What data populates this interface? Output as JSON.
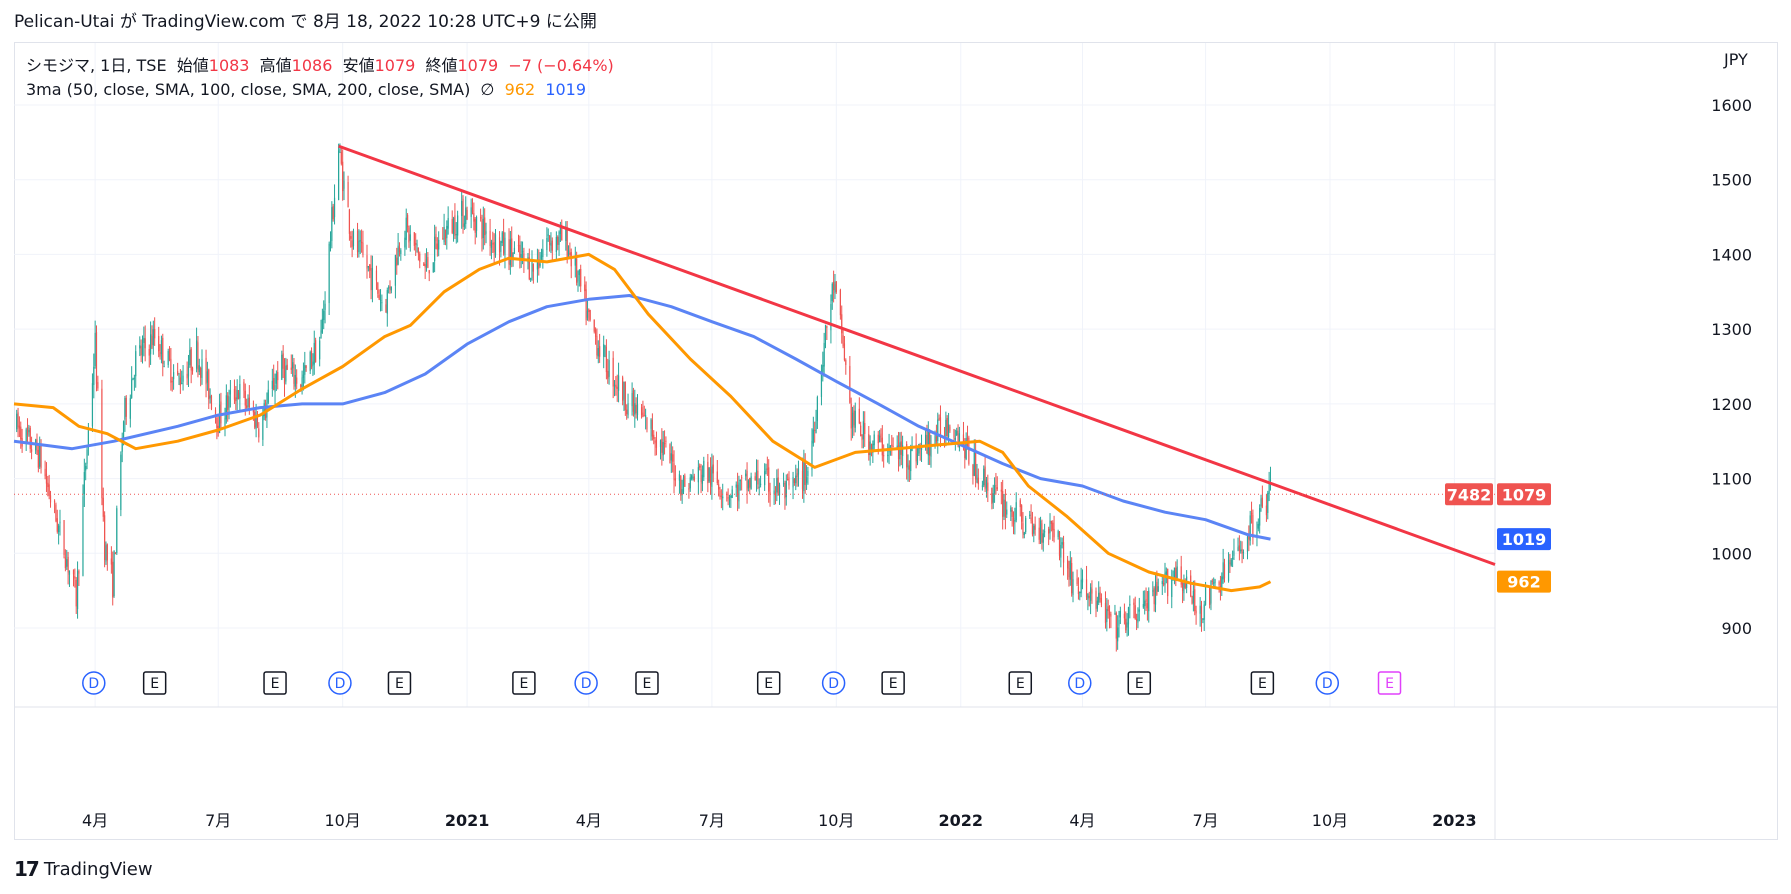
{
  "header": {
    "publish_text": "Pelican-Utai が TradingView.com で 8月 18, 2022 10:28 UTC+9 に公開"
  },
  "legend": {
    "symbol": "シモジマ, 1日, TSE",
    "open_label": "始値",
    "open": "1083",
    "high_label": "高値",
    "high": "1086",
    "low_label": "安値",
    "low": "1079",
    "close_label": "終値",
    "close": "1079",
    "change": "−7 (−0.64%)",
    "indicator": "3ma (50, close, SMA, 100, close, SMA, 200, close, SMA)",
    "indicator_empty_symbol": "∅",
    "ma50_value": "962",
    "ma100_value": "1019"
  },
  "axis": {
    "currency": "JPY"
  },
  "price_badges": {
    "countdown": "7482",
    "last_price": "1079",
    "ma100": "1019",
    "ma50": "962"
  },
  "footer": {
    "logo": "17",
    "brand": "TradingView"
  },
  "colors": {
    "up": "#26a69a",
    "down": "#ef5350",
    "trendline": "#f23645",
    "ma50": "#ff9800",
    "ma100": "#5b84f5",
    "grid": "#f0f3fa",
    "axis_text": "#131722"
  },
  "chart_data": {
    "type": "candlestick",
    "title": "シモジマ, 1日, TSE",
    "ylabel": "JPY",
    "ylim": [
      820,
      1680
    ],
    "xlim": [
      "2020-02-01",
      "2023-01-31"
    ],
    "y_ticks": [
      900,
      1000,
      1100,
      1200,
      1300,
      1400,
      1500,
      1600
    ],
    "x_ticks": [
      {
        "label": "4月",
        "date": "2020-04-01"
      },
      {
        "label": "7月",
        "date": "2020-07-01"
      },
      {
        "label": "10月",
        "date": "2020-10-01"
      },
      {
        "label": "2021",
        "date": "2021-01-01"
      },
      {
        "label": "4月",
        "date": "2021-04-01"
      },
      {
        "label": "7月",
        "date": "2021-07-01"
      },
      {
        "label": "10月",
        "date": "2021-10-01"
      },
      {
        "label": "2022",
        "date": "2022-01-01"
      },
      {
        "label": "4月",
        "date": "2022-04-01"
      },
      {
        "label": "7月",
        "date": "2022-07-01"
      },
      {
        "label": "10月",
        "date": "2022-10-01"
      },
      {
        "label": "2023",
        "date": "2023-01-01"
      }
    ],
    "grid": true,
    "price_path": [
      [
        "2020-02-03",
        1170
      ],
      [
        "2020-02-20",
        1130
      ],
      [
        "2020-03-01",
        1060
      ],
      [
        "2020-03-10",
        1000
      ],
      [
        "2020-03-18",
        940
      ],
      [
        "2020-03-25",
        1120
      ],
      [
        "2020-04-01",
        1280
      ],
      [
        "2020-04-08",
        1010
      ],
      [
        "2020-04-14",
        960
      ],
      [
        "2020-04-22",
        1180
      ],
      [
        "2020-05-01",
        1260
      ],
      [
        "2020-05-15",
        1290
      ],
      [
        "2020-06-01",
        1230
      ],
      [
        "2020-06-15",
        1270
      ],
      [
        "2020-07-01",
        1180
      ],
      [
        "2020-07-15",
        1220
      ],
      [
        "2020-08-01",
        1170
      ],
      [
        "2020-08-15",
        1250
      ],
      [
        "2020-09-01",
        1230
      ],
      [
        "2020-09-15",
        1290
      ],
      [
        "2020-09-28",
        1540
      ],
      [
        "2020-10-08",
        1420
      ],
      [
        "2020-10-20",
        1380
      ],
      [
        "2020-11-01",
        1330
      ],
      [
        "2020-11-15",
        1440
      ],
      [
        "2020-12-01",
        1380
      ],
      [
        "2020-12-15",
        1430
      ],
      [
        "2021-01-01",
        1460
      ],
      [
        "2021-01-20",
        1420
      ],
      [
        "2021-02-05",
        1400
      ],
      [
        "2021-02-20",
        1380
      ],
      [
        "2021-03-01",
        1420
      ],
      [
        "2021-03-15",
        1420
      ],
      [
        "2021-03-25",
        1360
      ],
      [
        "2021-04-01",
        1310
      ],
      [
        "2021-04-15",
        1250
      ],
      [
        "2021-05-01",
        1200
      ],
      [
        "2021-05-20",
        1160
      ],
      [
        "2021-06-10",
        1090
      ],
      [
        "2021-06-25",
        1110
      ],
      [
        "2021-07-15",
        1080
      ],
      [
        "2021-08-05",
        1100
      ],
      [
        "2021-08-25",
        1080
      ],
      [
        "2021-09-10",
        1110
      ],
      [
        "2021-09-22",
        1280
      ],
      [
        "2021-09-29",
        1360
      ],
      [
        "2021-10-06",
        1280
      ],
      [
        "2021-10-12",
        1180
      ],
      [
        "2021-10-25",
        1150
      ],
      [
        "2021-11-10",
        1140
      ],
      [
        "2021-11-25",
        1130
      ],
      [
        "2021-12-10",
        1150
      ],
      [
        "2021-12-25",
        1180
      ],
      [
        "2022-01-10",
        1120
      ],
      [
        "2022-01-25",
        1080
      ],
      [
        "2022-02-10",
        1050
      ],
      [
        "2022-02-25",
        1030
      ],
      [
        "2022-03-10",
        1040
      ],
      [
        "2022-03-25",
        960
      ],
      [
        "2022-04-10",
        940
      ],
      [
        "2022-04-25",
        900
      ],
      [
        "2022-05-10",
        920
      ],
      [
        "2022-05-25",
        940
      ],
      [
        "2022-06-10",
        980
      ],
      [
        "2022-06-25",
        920
      ],
      [
        "2022-07-10",
        960
      ],
      [
        "2022-07-25",
        1000
      ],
      [
        "2022-08-05",
        1040
      ],
      [
        "2022-08-18",
        1080
      ]
    ],
    "ma50": [
      [
        "2020-02-01",
        1200
      ],
      [
        "2020-03-01",
        1195
      ],
      [
        "2020-03-20",
        1170
      ],
      [
        "2020-04-10",
        1160
      ],
      [
        "2020-05-01",
        1140
      ],
      [
        "2020-06-01",
        1150
      ],
      [
        "2020-07-01",
        1165
      ],
      [
        "2020-08-01",
        1185
      ],
      [
        "2020-09-01",
        1220
      ],
      [
        "2020-10-01",
        1250
      ],
      [
        "2020-11-01",
        1290
      ],
      [
        "2020-11-20",
        1305
      ],
      [
        "2020-12-15",
        1350
      ],
      [
        "2021-01-10",
        1380
      ],
      [
        "2021-02-01",
        1395
      ],
      [
        "2021-03-01",
        1390
      ],
      [
        "2021-04-01",
        1400
      ],
      [
        "2021-04-20",
        1380
      ],
      [
        "2021-05-15",
        1320
      ],
      [
        "2021-06-15",
        1260
      ],
      [
        "2021-07-15",
        1210
      ],
      [
        "2021-08-15",
        1150
      ],
      [
        "2021-09-15",
        1115
      ],
      [
        "2021-10-15",
        1135
      ],
      [
        "2021-11-15",
        1140
      ],
      [
        "2021-12-15",
        1145
      ],
      [
        "2022-01-15",
        1150
      ],
      [
        "2022-02-01",
        1135
      ],
      [
        "2022-02-20",
        1090
      ],
      [
        "2022-03-20",
        1050
      ],
      [
        "2022-04-20",
        1000
      ],
      [
        "2022-05-20",
        975
      ],
      [
        "2022-06-20",
        960
      ],
      [
        "2022-07-20",
        950
      ],
      [
        "2022-08-10",
        955
      ],
      [
        "2022-08-18",
        962
      ]
    ],
    "ma100": [
      [
        "2020-02-01",
        1150
      ],
      [
        "2020-03-15",
        1140
      ],
      [
        "2020-04-15",
        1150
      ],
      [
        "2020-06-01",
        1170
      ],
      [
        "2020-07-01",
        1185
      ],
      [
        "2020-08-01",
        1195
      ],
      [
        "2020-09-01",
        1200
      ],
      [
        "2020-10-01",
        1200
      ],
      [
        "2020-11-01",
        1215
      ],
      [
        "2020-12-01",
        1240
      ],
      [
        "2021-01-01",
        1280
      ],
      [
        "2021-02-01",
        1310
      ],
      [
        "2021-03-01",
        1330
      ],
      [
        "2021-04-01",
        1340
      ],
      [
        "2021-05-01",
        1345
      ],
      [
        "2021-06-01",
        1330
      ],
      [
        "2021-07-01",
        1310
      ],
      [
        "2021-08-01",
        1290
      ],
      [
        "2021-09-01",
        1260
      ],
      [
        "2021-10-01",
        1230
      ],
      [
        "2021-11-01",
        1200
      ],
      [
        "2021-12-01",
        1170
      ],
      [
        "2022-01-01",
        1145
      ],
      [
        "2022-02-01",
        1120
      ],
      [
        "2022-03-01",
        1100
      ],
      [
        "2022-04-01",
        1090
      ],
      [
        "2022-05-01",
        1070
      ],
      [
        "2022-06-01",
        1055
      ],
      [
        "2022-07-01",
        1045
      ],
      [
        "2022-08-01",
        1025
      ],
      [
        "2022-08-18",
        1019
      ]
    ],
    "trendline": [
      [
        "2020-09-28",
        1545
      ],
      [
        "2023-01-31",
        985
      ]
    ],
    "last_price": 1079,
    "event_markers": [
      {
        "type": "D",
        "date": "2020-03-31"
      },
      {
        "type": "E",
        "date": "2020-05-15"
      },
      {
        "type": "E",
        "date": "2020-08-12"
      },
      {
        "type": "D",
        "date": "2020-09-29"
      },
      {
        "type": "E",
        "date": "2020-11-12"
      },
      {
        "type": "E",
        "date": "2021-02-12"
      },
      {
        "type": "D",
        "date": "2021-03-30"
      },
      {
        "type": "E",
        "date": "2021-05-14"
      },
      {
        "type": "E",
        "date": "2021-08-12"
      },
      {
        "type": "D",
        "date": "2021-09-29"
      },
      {
        "type": "E",
        "date": "2021-11-12"
      },
      {
        "type": "E",
        "date": "2022-02-14"
      },
      {
        "type": "D",
        "date": "2022-03-30"
      },
      {
        "type": "E",
        "date": "2022-05-13"
      },
      {
        "type": "E",
        "date": "2022-08-12"
      },
      {
        "type": "D",
        "date": "2022-09-29",
        "future": true
      },
      {
        "type": "E",
        "date": "2022-11-14",
        "future": true
      }
    ]
  }
}
